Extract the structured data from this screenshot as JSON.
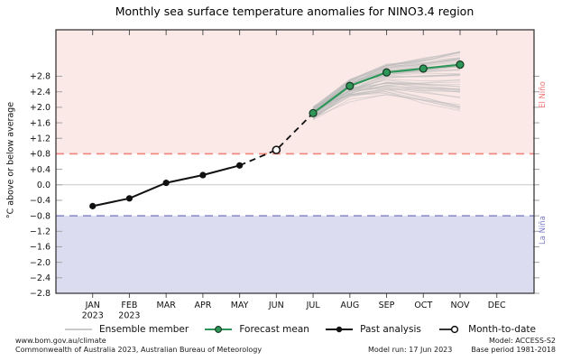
{
  "chart_data": {
    "type": "line",
    "title": "Monthly sea surface temperature anomalies for NINO3.4 region",
    "ylabel": "°C above or below average",
    "categories": [
      "JAN",
      "FEB",
      "MAR",
      "APR",
      "MAY",
      "JUN",
      "JUL",
      "AUG",
      "SEP",
      "OCT",
      "NOV",
      "DEC"
    ],
    "year_sublabel": "2023",
    "year_sublabel_month_indices": [
      0,
      1
    ],
    "ylim": [
      -2.8,
      4.0
    ],
    "ytick_values": [
      2.8,
      2.4,
      2.0,
      1.6,
      1.2,
      0.8,
      0.4,
      0.0,
      -0.4,
      -0.8,
      -1.2,
      -1.6,
      -2.0,
      -2.4,
      -2.8
    ],
    "ytick_labels": [
      "+2.8",
      "+2.4",
      "+2.0",
      "+1.6",
      "+1.2",
      "+0.8",
      "+0.4",
      "0.0",
      "−0.4",
      "−0.8",
      "−1.2",
      "−1.6",
      "−2.0",
      "−2.4",
      "−2.8"
    ],
    "thresholds": {
      "el_nino_value": 0.8,
      "la_nina_value": -0.8
    },
    "regions": {
      "el_nino_label": "El Niño",
      "la_nina_label": "La Niña"
    },
    "grid": "zero-line-only",
    "legend_position": "bottom",
    "series": [
      {
        "name": "Past analysis",
        "style": "solid-black-dots",
        "months": [
          "JAN",
          "FEB",
          "MAR",
          "APR",
          "MAY"
        ],
        "month_indices": [
          0,
          1,
          2,
          3,
          4
        ],
        "values": [
          -0.55,
          -0.35,
          0.05,
          0.25,
          0.5
        ]
      },
      {
        "name": "Month-to-date",
        "style": "open-circle-dashed-connector",
        "months": [
          "JUN"
        ],
        "month_indices": [
          5
        ],
        "values": [
          0.9
        ]
      },
      {
        "name": "Forecast mean",
        "style": "solid-green-dots",
        "months": [
          "JUL",
          "AUG",
          "SEP",
          "OCT",
          "NOV"
        ],
        "month_indices": [
          6,
          7,
          8,
          9,
          10
        ],
        "values": [
          1.85,
          2.55,
          2.9,
          3.0,
          3.1
        ]
      },
      {
        "name": "Ensemble member",
        "style": "thin-gray-lines",
        "generated": true,
        "months": [
          "JUL",
          "AUG",
          "SEP",
          "OCT",
          "NOV"
        ],
        "month_indices": [
          6,
          7,
          8,
          9,
          10
        ],
        "count": 55,
        "start_range": [
          1.67,
          2.03
        ],
        "end_range": [
          1.9,
          3.45
        ]
      }
    ]
  },
  "legend": {
    "items": [
      {
        "label": "Ensemble member"
      },
      {
        "label": "Forecast mean"
      },
      {
        "label": "Past analysis"
      },
      {
        "label": "Month-to-date"
      }
    ]
  },
  "footer": {
    "url": "www.bom.gov.au/climate",
    "copyright": "Commonwealth of Australia 2023, Australian Bureau of Meteorology",
    "model_run": "Model run: 17 Jun 2023",
    "model": "Model: ACCESS-S2",
    "base_period": "Base period 1981-2018"
  },
  "colors": {
    "el_nino_fill": "#fbe9e7",
    "la_nina_fill": "#dcdcf0",
    "el_nino_line": "#f4837d",
    "la_nina_line": "#8585c5",
    "el_nino_text": "#ef7272",
    "la_nina_text": "#7b7bc9",
    "forecast_green": "#2e9658",
    "forecast_dot_edge": "#15381f",
    "past_black": "#111111",
    "ensemble_gray": "#bbbbbb",
    "zero_grid": "#c9c9c9",
    "frame": "#2a2a2a"
  }
}
